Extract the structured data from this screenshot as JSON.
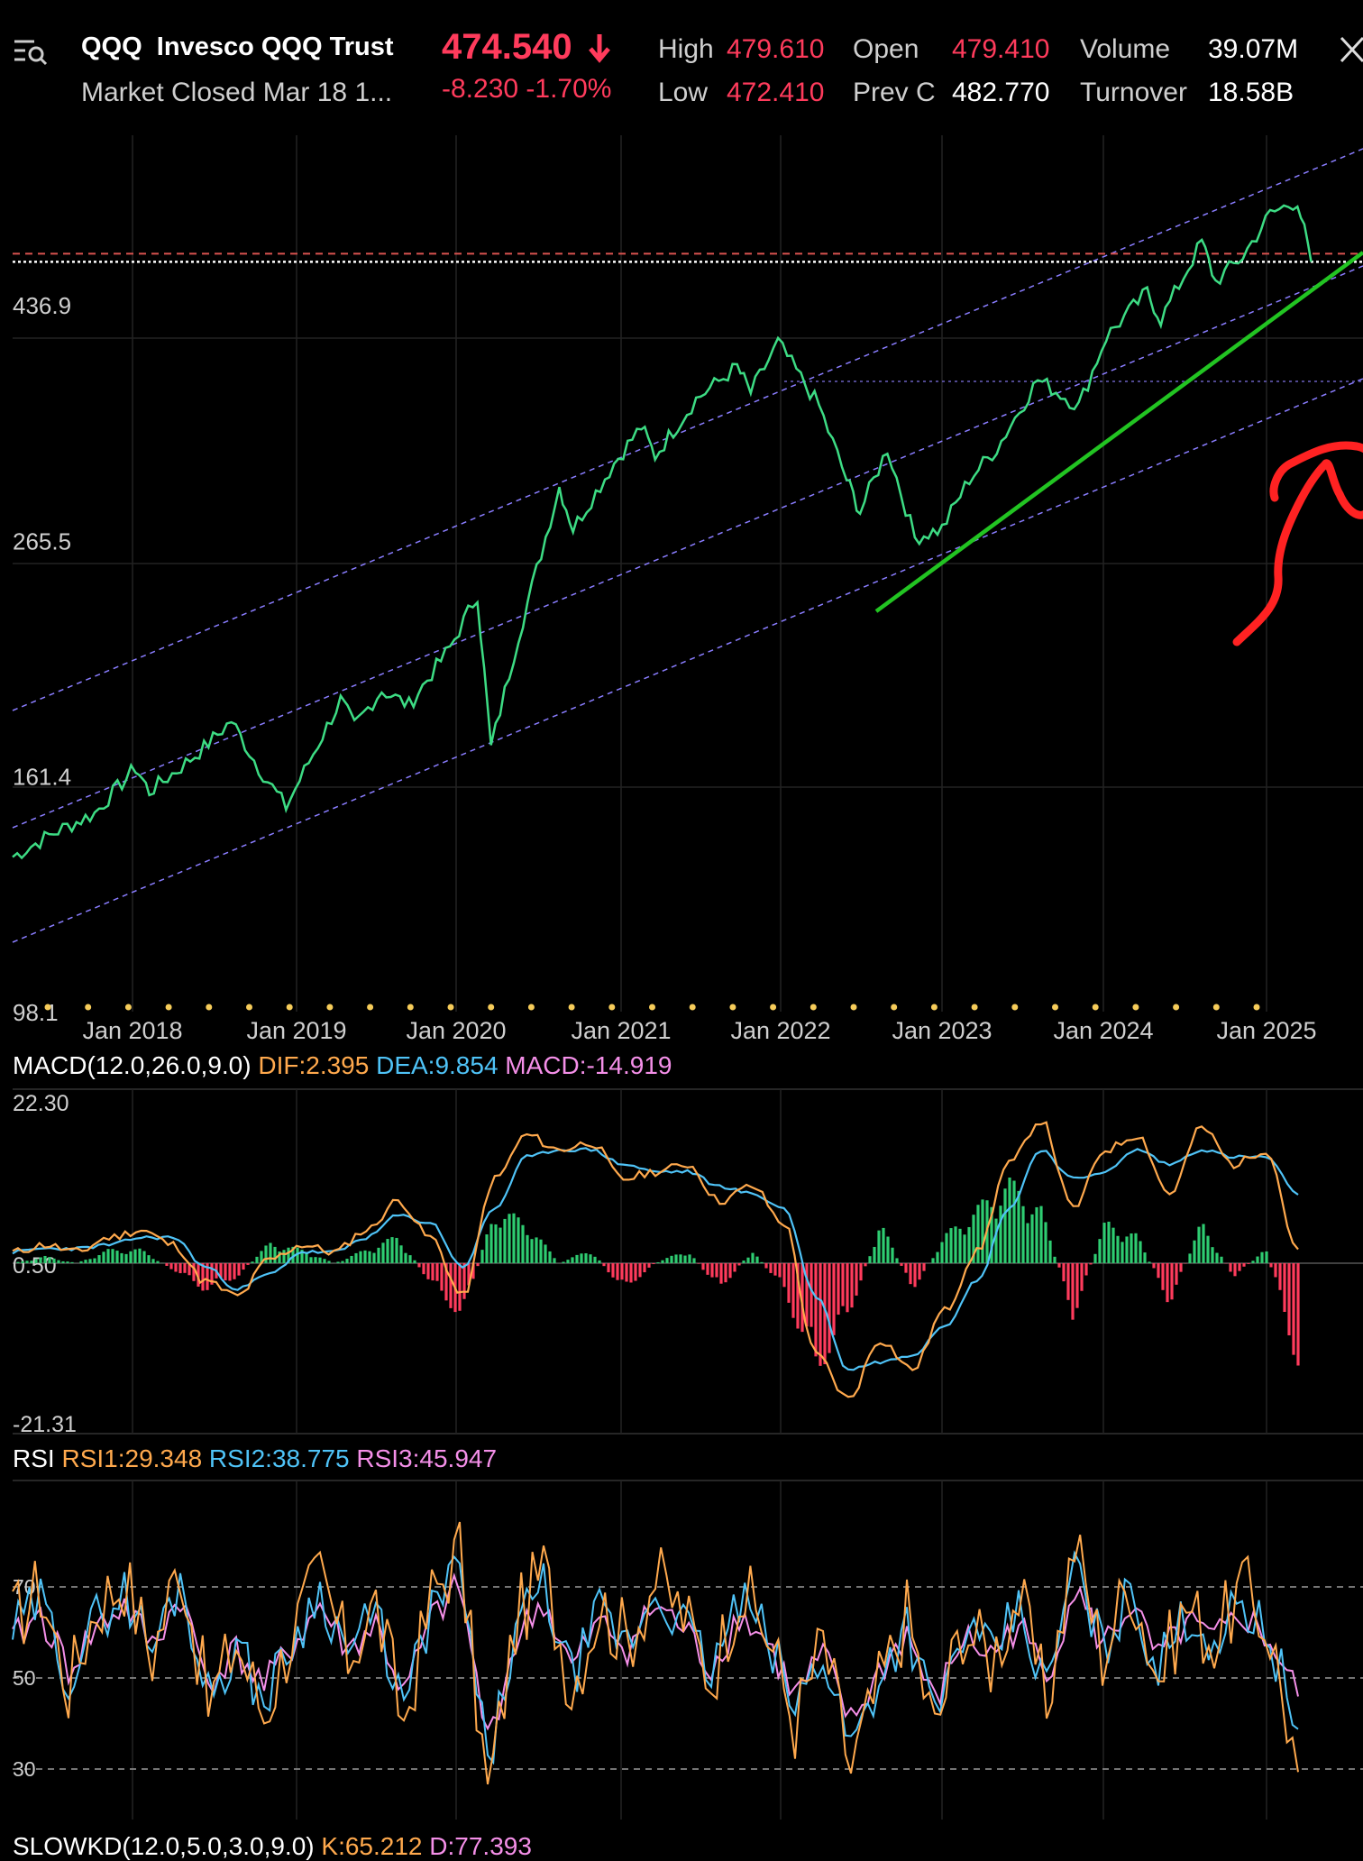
{
  "header": {
    "symbol": "QQQ",
    "name": "Invesco QQQ Trust",
    "status": "Market Closed Mar 18 1...",
    "price": "474.540",
    "change": "-8.230",
    "change_pct": "-1.70%",
    "high_label": "High",
    "high": "479.610",
    "low_label": "Low",
    "low": "472.410",
    "open_label": "Open",
    "open": "479.410",
    "prevc_label": "Prev C",
    "prevc": "482.770",
    "volume_label": "Volume",
    "volume": "39.07M",
    "turnover_label": "Turnover",
    "turnover": "18.58B",
    "icons": [
      "menu-search-icon",
      "down-arrow-icon",
      "close-icon"
    ]
  },
  "colors": {
    "price_line": "#3ddc84",
    "down": "#ff3b5c",
    "up": "#2ecc71",
    "dif": "#ffa94d",
    "dea": "#4fc3f7",
    "rsi3": "#f48fe8",
    "channel": "#8a7dff",
    "trendline": "#22c422",
    "annotation": "#ff2222"
  },
  "chart_data": [
    {
      "type": "line",
      "scale": "log",
      "y_ticks": [
        {
          "value": 436.9,
          "label": "436.9"
        },
        {
          "value": 265.5,
          "label": "265.5"
        },
        {
          "value": 161.4,
          "label": "161.4"
        },
        {
          "value": 98.1,
          "label": "98.1"
        }
      ],
      "ylim": [
        98.1,
        620
      ],
      "x_ticks": [
        "Jan 2018",
        "Jan 2019",
        "Jan 2020",
        "Jan 2021",
        "Jan 2022",
        "Jan 2023",
        "Jan 2024",
        "Jan 2025"
      ],
      "xlim": [
        "2017-04",
        "2025-06"
      ],
      "series": [
        {
          "x": [
            "2017-04",
            "2017-07",
            "2017-10",
            "2018-01",
            "2018-02",
            "2018-04",
            "2018-06",
            "2018-08",
            "2018-10",
            "2018-12",
            "2019-02",
            "2019-04",
            "2019-05",
            "2019-07",
            "2019-09",
            "2019-12",
            "2020-02",
            "2020-03",
            "2020-05",
            "2020-08",
            "2020-09",
            "2020-12",
            "2021-02",
            "2021-03",
            "2021-06",
            "2021-09",
            "2021-10",
            "2021-12",
            "2022-03",
            "2022-05",
            "2022-06",
            "2022-08",
            "2022-10",
            "2022-12",
            "2023-02",
            "2023-04",
            "2023-07",
            "2023-10",
            "2023-12",
            "2024-03",
            "2024-04",
            "2024-07",
            "2024-08",
            "2024-10",
            "2024-12",
            "2025-02",
            "2025-03"
          ],
          "y": [
            135,
            142,
            148,
            163,
            155,
            162,
            170,
            180,
            163,
            150,
            168,
            188,
            178,
            192,
            186,
            210,
            235,
            170,
            215,
            295,
            270,
            310,
            335,
            315,
            355,
            380,
            360,
            400,
            350,
            300,
            280,
            320,
            265,
            270,
            300,
            320,
            370,
            350,
            405,
            445,
            420,
            495,
            455,
            480,
            525,
            540,
            474.54
          ]
        }
      ],
      "horizontal_lines": [
        {
          "value": 482.77,
          "style": "dashed",
          "label": "prev close"
        },
        {
          "value": 474.54,
          "style": "dotted",
          "label": "last"
        }
      ],
      "grid": true
    },
    {
      "type": "line",
      "title": "MACD(12.0,26.0,9.0)",
      "values_text": {
        "dif": "DIF:2.395",
        "dea": "DEA:9.854",
        "macd": "MACD:-14.919"
      },
      "y_ticks": [
        "22.30",
        "0.50",
        "-21.31"
      ],
      "ylim": [
        -21.31,
        22.3
      ],
      "series": [
        {
          "name": "DIF",
          "values": [
            2,
            3,
            2,
            4,
            5,
            3,
            -2,
            -4,
            1,
            3,
            2,
            5,
            9,
            4,
            -4,
            12,
            18,
            16,
            17,
            12,
            13,
            14,
            9,
            11,
            6,
            -12,
            -18,
            -10,
            -14,
            -6,
            2,
            14,
            20,
            8,
            16,
            18,
            10,
            19,
            14,
            16,
            2.395
          ]
        },
        {
          "name": "DEA",
          "values": [
            2,
            2.5,
            2.5,
            3,
            4,
            4,
            0,
            -3,
            -1,
            2,
            2,
            4,
            7,
            6,
            0,
            8,
            15,
            16,
            16,
            14,
            13,
            13,
            11,
            10,
            8,
            -4,
            -14,
            -13,
            -12,
            -8,
            -2,
            8,
            16,
            12,
            13,
            16,
            14,
            16,
            15,
            15,
            9.854
          ]
        },
        {
          "name": "MACD",
          "values": [
            0,
            1,
            0,
            2,
            2,
            -1,
            -4,
            -2,
            3,
            2,
            0,
            2,
            4,
            -3,
            -8,
            8,
            6,
            0,
            2,
            -4,
            0,
            2,
            -4,
            2,
            -4,
            -16,
            -8,
            6,
            -4,
            4,
            8,
            12,
            8,
            -8,
            6,
            4,
            -6,
            6,
            -2,
            2,
            -14.919
          ]
        }
      ]
    },
    {
      "type": "line",
      "title": "RSI",
      "values_text": {
        "rsi1": "RSI1:29.348",
        "rsi2": "RSI2:38.775",
        "rsi3": "RSI3:45.947"
      },
      "y_ticks": [
        "70",
        "50",
        "30"
      ],
      "ylim": [
        22,
        85
      ],
      "series": [
        {
          "name": "RSI1",
          "values": [
            62,
            70,
            48,
            66,
            72,
            55,
            76,
            44,
            58,
            42,
            60,
            72,
            55,
            66,
            40,
            68,
            78,
            24,
            62,
            74,
            48,
            66,
            58,
            72,
            64,
            50,
            70,
            60,
            40,
            58,
            30,
            48,
            64,
            38,
            62,
            54,
            68,
            44,
            80,
            55,
            72,
            50,
            66,
            58,
            70,
            60,
            29.348
          ]
        },
        {
          "name": "RSI2",
          "values": [
            60,
            67,
            50,
            63,
            69,
            56,
            72,
            46,
            57,
            45,
            58,
            69,
            56,
            64,
            43,
            65,
            74,
            30,
            60,
            70,
            50,
            64,
            57,
            69,
            62,
            51,
            67,
            59,
            43,
            56,
            35,
            50,
            62,
            41,
            60,
            55,
            65,
            47,
            75,
            56,
            69,
            52,
            64,
            58,
            67,
            59,
            38.775
          ]
        },
        {
          "name": "RSI3",
          "values": [
            58,
            64,
            52,
            61,
            66,
            57,
            68,
            49,
            56,
            48,
            57,
            66,
            56,
            62,
            46,
            63,
            70,
            36,
            58,
            67,
            52,
            62,
            57,
            66,
            61,
            52,
            64,
            58,
            46,
            55,
            40,
            51,
            60,
            44,
            59,
            55,
            62,
            50,
            70,
            57,
            66,
            54,
            62,
            58,
            64,
            58,
            45.947
          ]
        }
      ]
    },
    {
      "type": "line",
      "title_text": "SLOWKD(12.0,5.0,3.0,9.0)",
      "values_text": {
        "k": "K:65.212",
        "d": "D:77.393"
      }
    }
  ]
}
